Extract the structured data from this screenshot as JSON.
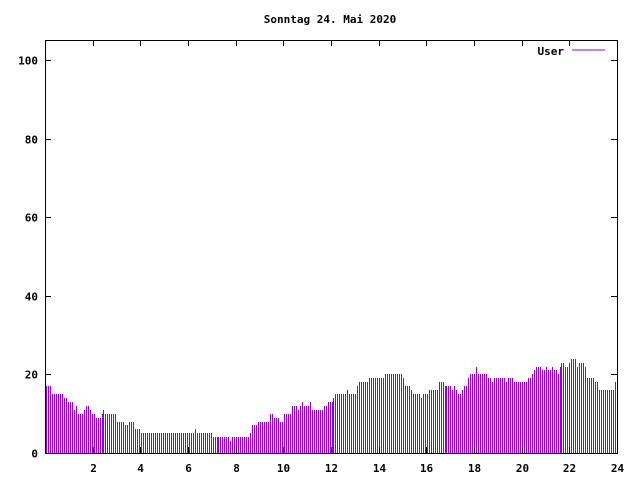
{
  "chart_data": {
    "type": "bar",
    "style": "impulses",
    "title": "Sonntag 24. Mai 2020",
    "xlabel": "",
    "ylabel": "",
    "xlim": [
      0,
      24
    ],
    "ylim": [
      0,
      105
    ],
    "x_ticks": [
      "2",
      "4",
      "6",
      "8",
      "10",
      "12",
      "14",
      "16",
      "18",
      "20",
      "22",
      "24"
    ],
    "y_ticks": [
      "0",
      "20",
      "40",
      "60",
      "80",
      "100"
    ],
    "grid": false,
    "legend_position": "top-right",
    "series": [
      {
        "name": "User",
        "color": "#9400d3",
        "x_step_hours": 0.0833,
        "values": [
          17,
          17,
          17,
          15,
          15,
          15,
          15,
          15,
          15,
          14,
          14,
          13,
          13,
          13,
          11,
          12,
          10,
          10,
          10,
          11,
          12,
          12,
          11,
          10,
          10,
          9,
          9,
          9,
          10,
          11,
          10,
          10,
          10,
          10,
          10,
          10,
          8,
          8,
          8,
          8,
          7,
          7,
          8,
          8,
          8,
          6,
          6,
          6,
          5,
          5,
          5,
          5,
          5,
          5,
          5,
          5,
          5,
          5,
          5,
          5,
          5,
          5,
          5,
          5,
          5,
          5,
          5,
          5,
          5,
          5,
          5,
          5,
          5,
          5,
          5,
          6,
          5,
          5,
          5,
          5,
          5,
          5,
          5,
          5,
          4,
          4,
          4,
          4,
          4,
          4,
          4,
          4,
          4,
          3,
          4,
          4,
          4,
          4,
          4,
          4,
          4,
          4,
          4,
          5,
          7,
          7,
          7,
          8,
          8,
          8,
          8,
          8,
          8,
          10,
          10,
          9,
          9,
          9,
          8,
          8,
          10,
          10,
          10,
          10,
          12,
          12,
          12,
          11,
          12,
          13,
          12,
          12,
          12,
          13,
          11,
          11,
          11,
          11,
          11,
          11,
          12,
          12,
          13,
          13,
          13,
          14,
          15,
          15,
          15,
          15,
          15,
          15,
          16,
          15,
          15,
          15,
          15,
          17,
          18,
          18,
          18,
          18,
          18,
          19,
          19,
          19,
          19,
          19,
          19,
          19,
          19,
          20,
          20,
          20,
          20,
          20,
          20,
          20,
          20,
          20,
          19,
          17,
          17,
          17,
          16,
          15,
          15,
          15,
          15,
          14,
          15,
          15,
          15,
          16,
          16,
          16,
          16,
          16,
          18,
          18,
          18,
          17,
          17,
          17,
          17,
          16,
          17,
          16,
          15,
          15,
          16,
          17,
          17,
          19,
          20,
          20,
          20,
          22,
          20,
          20,
          20,
          20,
          20,
          19,
          19,
          18,
          19,
          19,
          19,
          19,
          19,
          19,
          18,
          19,
          19,
          19,
          18,
          18,
          18,
          18,
          18,
          18,
          18,
          19,
          19,
          20,
          21,
          22,
          22,
          22,
          21,
          21,
          22,
          21,
          21,
          22,
          21,
          21,
          20,
          22,
          23,
          23,
          22,
          22,
          23,
          24,
          24,
          24,
          22,
          23,
          23,
          23,
          22,
          19,
          19,
          19,
          19,
          18,
          18,
          16,
          16,
          16,
          16,
          16,
          16,
          16,
          16,
          18
        ]
      }
    ]
  }
}
